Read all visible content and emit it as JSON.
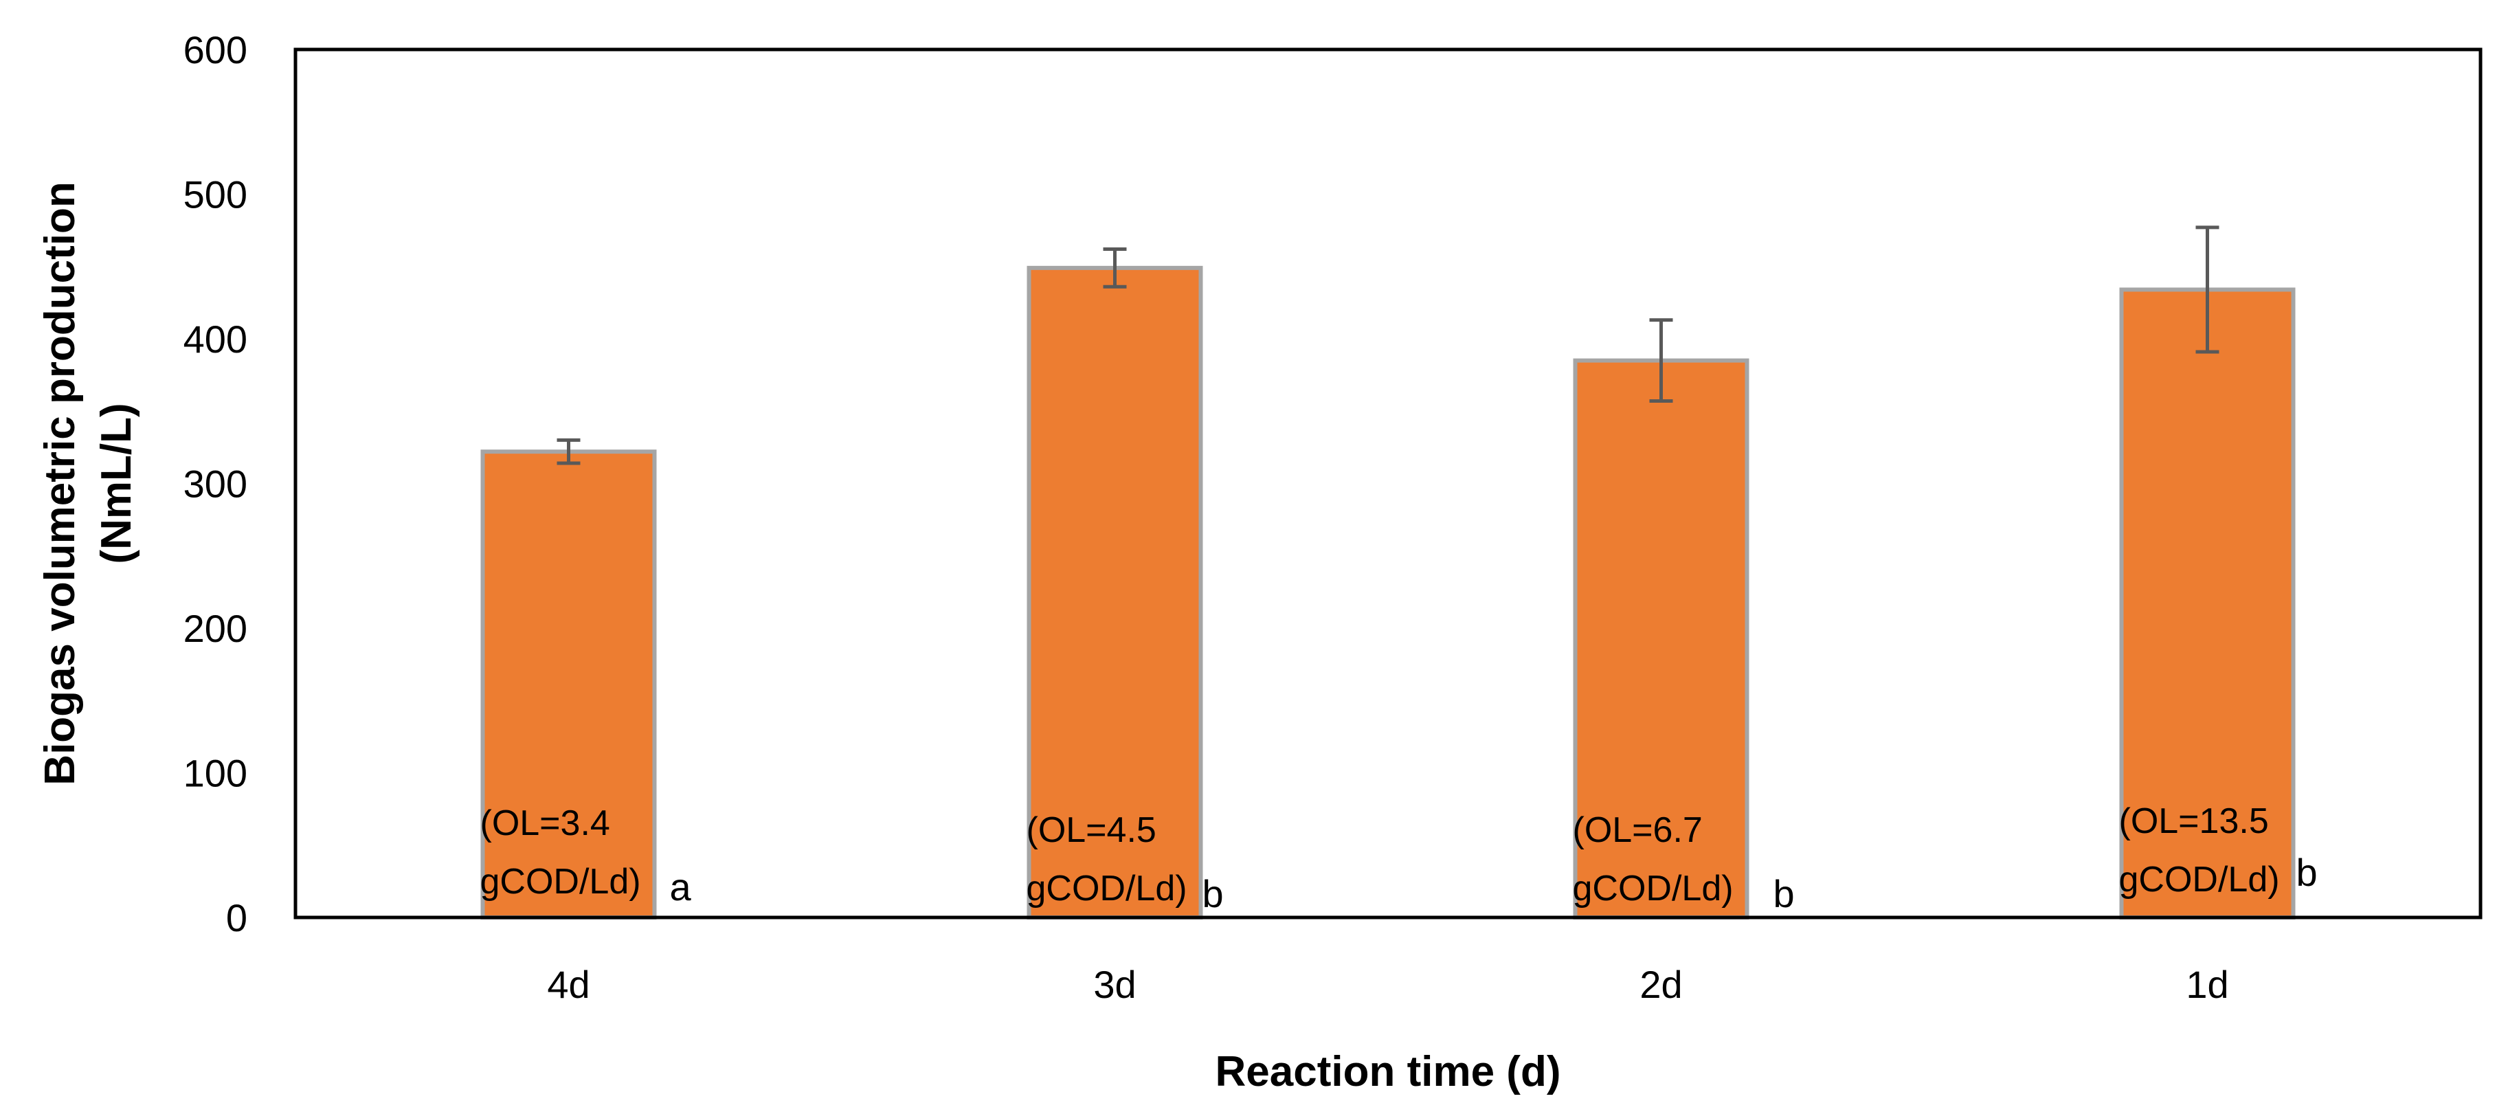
{
  "chart_data": {
    "type": "bar",
    "categories": [
      "4d",
      "3d",
      "2d",
      "1d"
    ],
    "values": [
      322,
      449,
      385,
      434
    ],
    "errors": [
      8,
      13,
      28,
      43
    ],
    "bar_notes": [
      {
        "line1": "(OL=3.4",
        "line2": "gCOD/Ld)",
        "letter": "a"
      },
      {
        "line1": "(OL=4.5",
        "line2": "gCOD/Ld)",
        "letter": "b"
      },
      {
        "line1": "(OL=6.7",
        "line2": "gCOD/Ld)",
        "letter": "b"
      },
      {
        "line1": "(OL=13.5",
        "line2": "gCOD/Ld)",
        "letter": "b"
      }
    ],
    "xlabel": "Reaction time (d)",
    "ylabel_line1": "Biogas volumetric production",
    "ylabel_line2": "(NmL/L)",
    "ylim": [
      0,
      600
    ],
    "yticks": [
      "0",
      "100",
      "200",
      "300",
      "400",
      "500",
      "600"
    ],
    "grid": false,
    "colors": {
      "bar_fill": "#ED7D31",
      "bar_edge": "#A5A5A5",
      "error_bar": "#595959",
      "axis": "#000000"
    }
  }
}
